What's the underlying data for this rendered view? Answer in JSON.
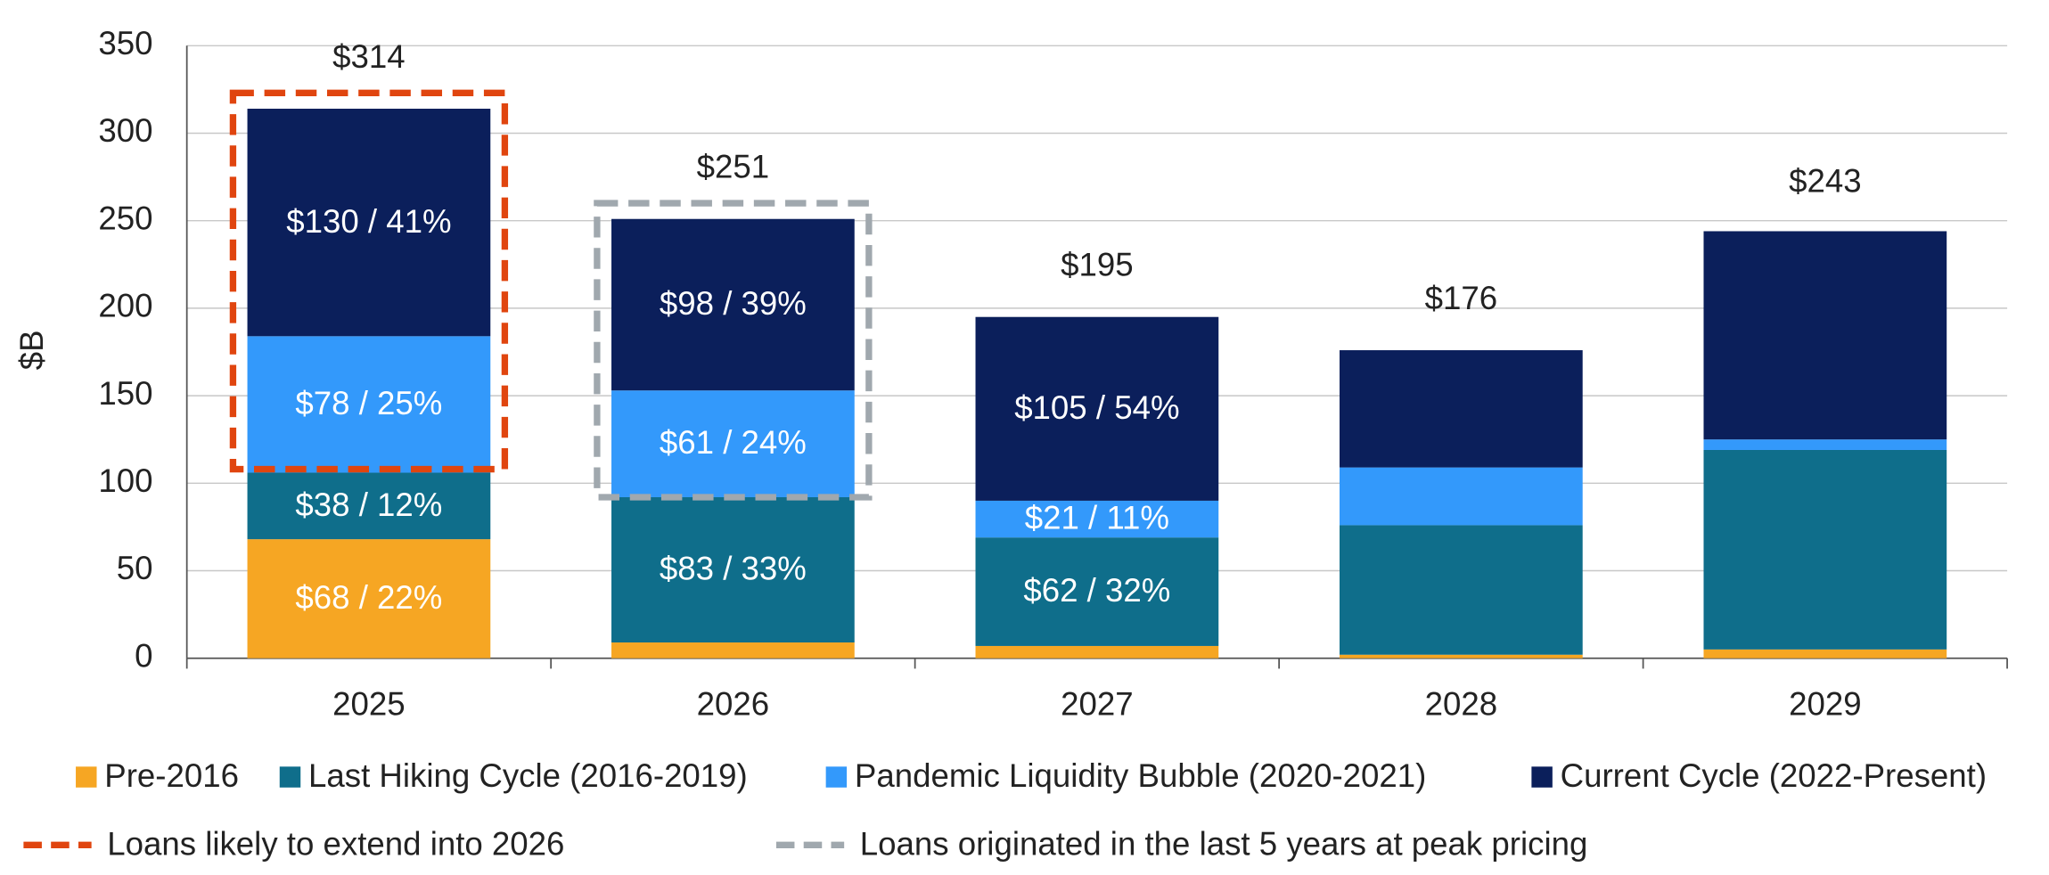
{
  "chart_data": {
    "type": "stacked-bar",
    "y_label": "$B",
    "categories": [
      "2025",
      "2026",
      "2027",
      "2028",
      "2029"
    ],
    "series": [
      {
        "name": "Pre-2016",
        "color": "#f6a623",
        "values": [
          68,
          9,
          7,
          2,
          5
        ],
        "value_labels": [
          "$68 / 22%",
          null,
          null,
          null,
          null
        ]
      },
      {
        "name": "Last Hiking Cycle (2016-2019)",
        "color": "#0f6e8b",
        "values": [
          38,
          83,
          62,
          74,
          114
        ],
        "value_labels": [
          "$38 / 12%",
          "$83 / 33%",
          "$62 / 32%",
          null,
          null
        ]
      },
      {
        "name": "Pandemic Liquidity Bubble (2020-2021)",
        "color": "#3399fb",
        "values": [
          78,
          61,
          21,
          33,
          6
        ],
        "value_labels": [
          "$78 / 25%",
          "$61 / 24%",
          "$21 / 11%",
          null,
          null
        ]
      },
      {
        "name": "Current Cycle (2022-Present)",
        "color": "#0b1f5b",
        "values": [
          130,
          98,
          105,
          67,
          119
        ],
        "value_labels": [
          "$130 / 41%",
          "$98 / 39%",
          "$105 / 54%",
          null,
          null
        ]
      }
    ],
    "totals": [
      314,
      251,
      195,
      176,
      243
    ],
    "total_labels": [
      "$314",
      "$251",
      "$195",
      "$176",
      "$243"
    ],
    "highlights": [
      {
        "label": "Loans likely to extend into 2026",
        "color": "#e0450f",
        "category": 0,
        "range": [
          108,
          323
        ]
      },
      {
        "label": "Loans originated in the last 5 years at peak pricing",
        "color": "#a0a8ae",
        "category": 1,
        "range": [
          92,
          260
        ]
      }
    ],
    "ylim": [
      0,
      350
    ],
    "yticks": [
      0,
      50,
      100,
      150,
      200,
      250,
      300,
      350
    ],
    "grid": true
  }
}
